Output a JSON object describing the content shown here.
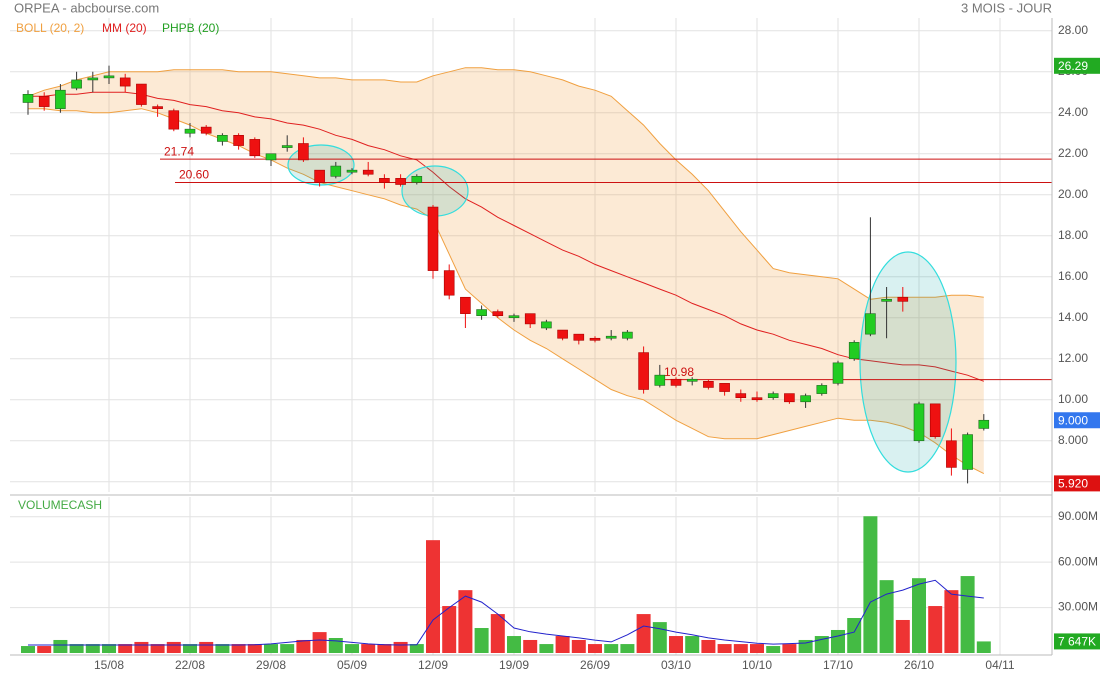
{
  "chart_data": [
    {
      "type": "candlestick",
      "title": "ORPEA - abcbourse.com",
      "period": "3 MOIS - JOUR",
      "up_color": "#22cc22",
      "down_color": "#ee1111",
      "categories": [
        null,
        null,
        null,
        null,
        null,
        "15/08",
        null,
        null,
        null,
        null,
        "22/08",
        null,
        null,
        null,
        null,
        "29/08",
        null,
        null,
        null,
        null,
        "05/09",
        null,
        null,
        null,
        null,
        "12/09",
        null,
        null,
        null,
        null,
        "19/09",
        null,
        null,
        null,
        null,
        "26/09",
        null,
        null,
        null,
        null,
        "03/10",
        null,
        null,
        null,
        null,
        "10/10",
        null,
        null,
        null,
        null,
        "17/10",
        null,
        null,
        null,
        null,
        "26/10",
        null,
        null,
        null,
        null,
        "04/11"
      ],
      "open": [
        24.5,
        24.8,
        24.2,
        25.2,
        25.6,
        25.7,
        25.7,
        25.4,
        24.3,
        24.1,
        23.0,
        23.3,
        22.6,
        22.9,
        22.7,
        21.7,
        22.3,
        22.5,
        21.2,
        20.9,
        21.1,
        21.2,
        20.8,
        20.8,
        20.6,
        19.4,
        16.3,
        15.0,
        14.1,
        14.3,
        14.0,
        14.2,
        13.5,
        13.4,
        13.2,
        13.0,
        13.0,
        13.0,
        12.3,
        10.7,
        11.0,
        10.9,
        10.9,
        10.8,
        10.3,
        10.1,
        10.1,
        10.3,
        9.9,
        10.3,
        10.8,
        12.0,
        13.2,
        14.8,
        15.0,
        8.0,
        9.8,
        8.0,
        6.6,
        8.6,
        null
      ],
      "high": [
        25.1,
        25.0,
        25.4,
        26.0,
        26.0,
        26.3,
        25.9,
        25.4,
        24.4,
        24.2,
        23.5,
        23.4,
        23.0,
        23.0,
        22.8,
        22.0,
        22.9,
        22.8,
        21.2,
        21.6,
        21.3,
        21.6,
        21.0,
        21.0,
        21.0,
        19.5,
        16.6,
        15.0,
        14.6,
        14.4,
        14.2,
        14.2,
        13.9,
        13.4,
        13.2,
        13.1,
        13.4,
        13.4,
        12.6,
        11.7,
        11.1,
        11.1,
        11.0,
        10.8,
        10.5,
        10.4,
        10.4,
        10.3,
        10.3,
        10.8,
        11.9,
        12.9,
        18.9,
        15.5,
        15.5,
        9.9,
        9.8,
        8.6,
        8.4,
        9.3,
        null
      ],
      "low": [
        23.9,
        24.1,
        24.0,
        25.1,
        25.0,
        25.4,
        25.0,
        24.3,
        23.8,
        23.1,
        22.8,
        22.9,
        22.4,
        22.2,
        21.8,
        21.4,
        22.1,
        21.6,
        20.4,
        20.8,
        21.0,
        20.9,
        20.3,
        20.4,
        20.5,
        15.9,
        14.9,
        13.5,
        13.9,
        14.0,
        13.8,
        13.5,
        13.4,
        12.9,
        12.7,
        12.8,
        12.9,
        12.9,
        10.3,
        10.6,
        10.6,
        10.7,
        10.5,
        10.2,
        9.9,
        9.9,
        10.0,
        9.8,
        9.6,
        10.2,
        10.7,
        11.9,
        13.1,
        13.0,
        14.3,
        7.9,
        8.1,
        6.3,
        5.92,
        8.5,
        null
      ],
      "close": [
        24.9,
        24.3,
        25.1,
        25.6,
        25.7,
        25.8,
        25.3,
        24.4,
        24.2,
        23.2,
        23.2,
        23.0,
        22.9,
        22.4,
        21.9,
        22.0,
        22.4,
        21.7,
        20.6,
        21.4,
        21.2,
        21.0,
        20.6,
        20.5,
        20.9,
        16.3,
        15.1,
        14.2,
        14.4,
        14.1,
        14.1,
        13.7,
        13.8,
        13.0,
        12.9,
        12.9,
        13.1,
        13.3,
        10.5,
        11.2,
        10.7,
        11.0,
        10.6,
        10.4,
        10.1,
        10.0,
        10.3,
        9.9,
        10.2,
        10.7,
        11.8,
        12.8,
        14.2,
        14.9,
        14.8,
        9.8,
        8.2,
        6.7,
        8.3,
        9.0,
        null
      ],
      "series": [
        {
          "name": "BOLL (20, 2)",
          "color": "#f0a040",
          "upper": [
            24.8,
            25.1,
            25.3,
            25.6,
            25.8,
            26.0,
            26.0,
            26.0,
            26.0,
            26.1,
            26.1,
            26.1,
            26.1,
            26.0,
            26.0,
            26.0,
            25.9,
            25.8,
            25.7,
            25.7,
            25.6,
            25.6,
            25.6,
            25.5,
            25.5,
            25.8,
            26.0,
            26.2,
            26.2,
            26.1,
            26.1,
            26.0,
            25.8,
            25.6,
            25.3,
            25.1,
            24.8,
            24.1,
            23.4,
            22.5,
            21.7,
            21.0,
            20.2,
            19.2,
            18.2,
            17.3,
            16.4,
            16.2,
            16.1,
            16.0,
            15.9,
            15.4,
            14.9,
            15.0,
            15.0,
            15.0,
            15.0,
            15.1,
            15.1,
            15.0,
            null
          ],
          "lower": [
            24.2,
            24.2,
            24.1,
            24.1,
            24.0,
            24.0,
            24.1,
            24.2,
            24.0,
            23.7,
            23.4,
            23.0,
            22.7,
            22.4,
            22.0,
            21.7,
            21.3,
            21.0,
            20.6,
            20.4,
            20.2,
            20.0,
            19.8,
            19.5,
            19.3,
            18.8,
            17.1,
            15.4,
            14.7,
            14.0,
            13.4,
            12.9,
            12.5,
            12.0,
            11.5,
            11.0,
            10.5,
            10.2,
            10.0,
            9.5,
            9.0,
            8.6,
            8.2,
            8.1,
            8.1,
            8.1,
            8.3,
            8.5,
            8.7,
            8.9,
            9.1,
            9.0,
            9.0,
            8.9,
            8.7,
            8.4,
            7.9,
            7.3,
            6.8,
            6.4,
            null
          ]
        },
        {
          "name": "MM (20)",
          "color": "#e02020",
          "values": [
            24.8,
            24.8,
            24.9,
            24.9,
            25.0,
            25.0,
            25.0,
            24.9,
            24.7,
            24.6,
            24.4,
            24.3,
            24.1,
            24.0,
            23.8,
            23.7,
            23.5,
            23.4,
            23.2,
            22.9,
            22.7,
            22.4,
            22.2,
            21.9,
            21.7,
            21.1,
            20.4,
            19.8,
            19.4,
            18.9,
            18.5,
            18.1,
            17.7,
            17.3,
            17.0,
            16.6,
            16.3,
            16.0,
            15.7,
            15.4,
            15.1,
            14.7,
            14.4,
            14.1,
            13.7,
            13.4,
            13.2,
            12.9,
            12.7,
            12.5,
            12.2,
            12.0,
            11.9,
            11.8,
            11.7,
            11.7,
            11.6,
            11.4,
            11.2,
            10.9,
            null
          ]
        },
        {
          "name": "PHPB (20)",
          "color": "#22a022"
        }
      ],
      "levels": [
        {
          "value": 21.74,
          "label": "21.74"
        },
        {
          "value": 20.6,
          "label": "20.60"
        },
        {
          "value": 10.98,
          "label": "10.98"
        }
      ],
      "level_color": "#cc1111",
      "markers": [
        {
          "value": 26.29,
          "label": "26.29",
          "color": "#22aa22"
        },
        {
          "value": 9.0,
          "label": "9.000",
          "color": "#3377ee"
        },
        {
          "value": 5.92,
          "label": "5.920",
          "color": "#dd1111"
        }
      ],
      "ylim": [
        5.5,
        28.6
      ],
      "yticks": [
        {
          "value": 28,
          "label": "28.00"
        },
        {
          "value": 26,
          "label": "26.00"
        },
        {
          "value": 24,
          "label": "24.00"
        },
        {
          "value": 22,
          "label": "22.00"
        },
        {
          "value": 20,
          "label": "20.00"
        },
        {
          "value": 18,
          "label": "18.00"
        },
        {
          "value": 16,
          "label": "16.00"
        },
        {
          "value": 14,
          "label": "14.00"
        },
        {
          "value": 12,
          "label": "12.00"
        },
        {
          "value": 10,
          "label": "10.00"
        },
        {
          "value": 8,
          "label": "8.000"
        },
        {
          "value": 6,
          "label": "6.000"
        }
      ],
      "grid": true
    },
    {
      "type": "bar",
      "title": "VOLUMECASH",
      "up_color": "#44bb44",
      "down_color": "#ee3333",
      "values": [
        4.6,
        4.6,
        8.6,
        5.9,
        5.9,
        5.9,
        5.9,
        7.3,
        5.9,
        7.3,
        5.9,
        7.3,
        5.9,
        5.9,
        5.9,
        5.9,
        5.9,
        8.6,
        13.8,
        9.9,
        5.9,
        5.9,
        5.9,
        7.3,
        5.9,
        74.5,
        31,
        41.5,
        16.5,
        25.7,
        11.2,
        8.6,
        5.9,
        11.2,
        8.6,
        5.9,
        5.9,
        5.9,
        25.7,
        20.4,
        11.2,
        11.2,
        8.6,
        5.9,
        5.9,
        5.9,
        4.6,
        5.9,
        8.6,
        11.2,
        15.2,
        23.1,
        90.3,
        48.1,
        21.8,
        49.4,
        31,
        41.5,
        50.8,
        7.647,
        null
      ],
      "line": {
        "color": "#2222cc",
        "values": [
          5.3,
          5.3,
          5.3,
          5.3,
          5.3,
          5.3,
          5.3,
          5.3,
          5.3,
          5.3,
          5.3,
          5.3,
          5.3,
          5.3,
          5.5,
          6,
          7,
          8,
          8.6,
          8,
          7,
          6,
          5.5,
          5.3,
          5.5,
          21.8,
          30,
          37.6,
          33.6,
          25.7,
          16.5,
          14,
          12.5,
          11.2,
          10,
          8.5,
          7.3,
          12,
          17.8,
          16,
          13.8,
          12,
          10,
          8.6,
          7.5,
          6.5,
          5.9,
          6.2,
          6.6,
          9,
          11.2,
          13.8,
          33.6,
          38.9,
          41.5,
          45.5,
          48,
          38.9,
          37.6,
          36.3,
          null
        ]
      },
      "last": {
        "value": 7.647,
        "label": "7 647K",
        "color": "#22aa22"
      },
      "ylim": [
        0,
        103
      ],
      "yticks": [
        {
          "value": 30,
          "label": "30.00M"
        },
        {
          "value": 60,
          "label": "60.00M"
        },
        {
          "value": 90,
          "label": "90.00M"
        }
      ],
      "grid": true
    }
  ]
}
